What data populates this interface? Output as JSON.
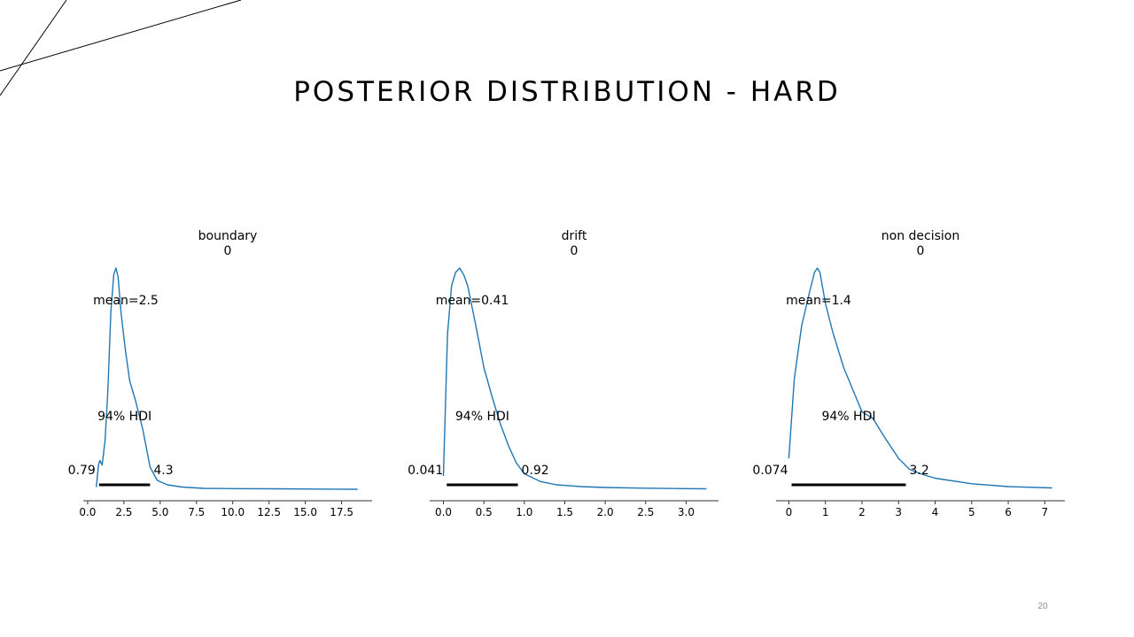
{
  "slide": {
    "title": "POSTERIOR DISTRIBUTION - HARD",
    "page_number": "20"
  },
  "colors": {
    "kde_line": "#1f77b4",
    "hdi_bar": "#000000",
    "axis": "#333333",
    "text": "#000000"
  },
  "chart_data": [
    {
      "type": "line",
      "title": "boundary",
      "subtitle": "0",
      "xlabel": "",
      "ylabel": "",
      "xlim": [
        -0.3,
        19.6
      ],
      "xticks": [
        0.0,
        2.5,
        5.0,
        7.5,
        10.0,
        12.5,
        15.0,
        17.5
      ],
      "xtick_labels": [
        "0.0",
        "2.5",
        "5.0",
        "7.5",
        "10.0",
        "12.5",
        "15.0",
        "17.5"
      ],
      "grid": false,
      "series": [
        {
          "x": [
            0.6,
            0.75,
            0.85,
            1.0,
            1.2,
            1.4,
            1.6,
            1.8,
            1.95,
            2.1,
            2.3,
            2.6,
            2.9,
            3.3,
            3.8,
            4.3,
            4.8,
            5.5,
            6.5,
            8.0,
            10.0,
            13.0,
            16.0,
            18.6
          ],
          "y": [
            0.01,
            0.11,
            0.13,
            0.11,
            0.22,
            0.45,
            0.8,
            0.97,
            1.0,
            0.96,
            0.8,
            0.63,
            0.49,
            0.4,
            0.27,
            0.1,
            0.04,
            0.02,
            0.01,
            0.004,
            0.003,
            0.002,
            0.001,
            0.0
          ]
        }
      ],
      "mean_label": "mean=2.5",
      "hdi_label": "94% HDI",
      "hdi": [
        0.79,
        4.3
      ],
      "hdi_low_label": "0.79",
      "hdi_high_label": "4.3"
    },
    {
      "type": "line",
      "title": "drift",
      "subtitle": "0",
      "xlabel": "",
      "ylabel": "",
      "xlim": [
        -0.17,
        3.4
      ],
      "xticks": [
        0.0,
        0.5,
        1.0,
        1.5,
        2.0,
        2.5,
        3.0
      ],
      "xtick_labels": [
        "0.0",
        "0.5",
        "1.0",
        "1.5",
        "2.0",
        "2.5",
        "3.0"
      ],
      "grid": false,
      "series": [
        {
          "x": [
            0.0,
            0.05,
            0.1,
            0.15,
            0.2,
            0.25,
            0.3,
            0.4,
            0.5,
            0.6,
            0.7,
            0.8,
            0.9,
            1.0,
            1.2,
            1.4,
            1.7,
            2.0,
            2.5,
            3.0,
            3.25
          ],
          "y": [
            0.06,
            0.7,
            0.92,
            0.98,
            1.0,
            0.97,
            0.92,
            0.74,
            0.55,
            0.42,
            0.3,
            0.2,
            0.12,
            0.07,
            0.035,
            0.02,
            0.012,
            0.008,
            0.005,
            0.003,
            0.002
          ]
        }
      ],
      "mean_label": "mean=0.41",
      "hdi_label": "94% HDI",
      "hdi": [
        0.041,
        0.92
      ],
      "hdi_low_label": "0.041",
      "hdi_high_label": "0.92"
    },
    {
      "type": "line",
      "title": "non decision",
      "subtitle": "0",
      "xlabel": "",
      "ylabel": "",
      "xlim": [
        -0.35,
        7.55
      ],
      "xticks": [
        0,
        1,
        2,
        3,
        4,
        5,
        6,
        7
      ],
      "xtick_labels": [
        "0",
        "1",
        "2",
        "3",
        "4",
        "5",
        "6",
        "7"
      ],
      "grid": false,
      "series": [
        {
          "x": [
            0.0,
            0.15,
            0.35,
            0.55,
            0.7,
            0.78,
            0.85,
            1.0,
            1.2,
            1.5,
            1.8,
            2.0,
            2.3,
            2.6,
            3.0,
            3.3,
            3.6,
            4.0,
            5.0,
            6.0,
            7.2
          ],
          "y": [
            0.14,
            0.5,
            0.74,
            0.88,
            0.98,
            1.0,
            0.98,
            0.84,
            0.71,
            0.55,
            0.43,
            0.35,
            0.32,
            0.24,
            0.14,
            0.09,
            0.07,
            0.05,
            0.025,
            0.012,
            0.006
          ]
        }
      ],
      "mean_label": "mean=1.4",
      "hdi_label": "94% HDI",
      "hdi": [
        0.074,
        3.2
      ],
      "hdi_low_label": "0.074",
      "hdi_high_label": "3.2"
    }
  ]
}
